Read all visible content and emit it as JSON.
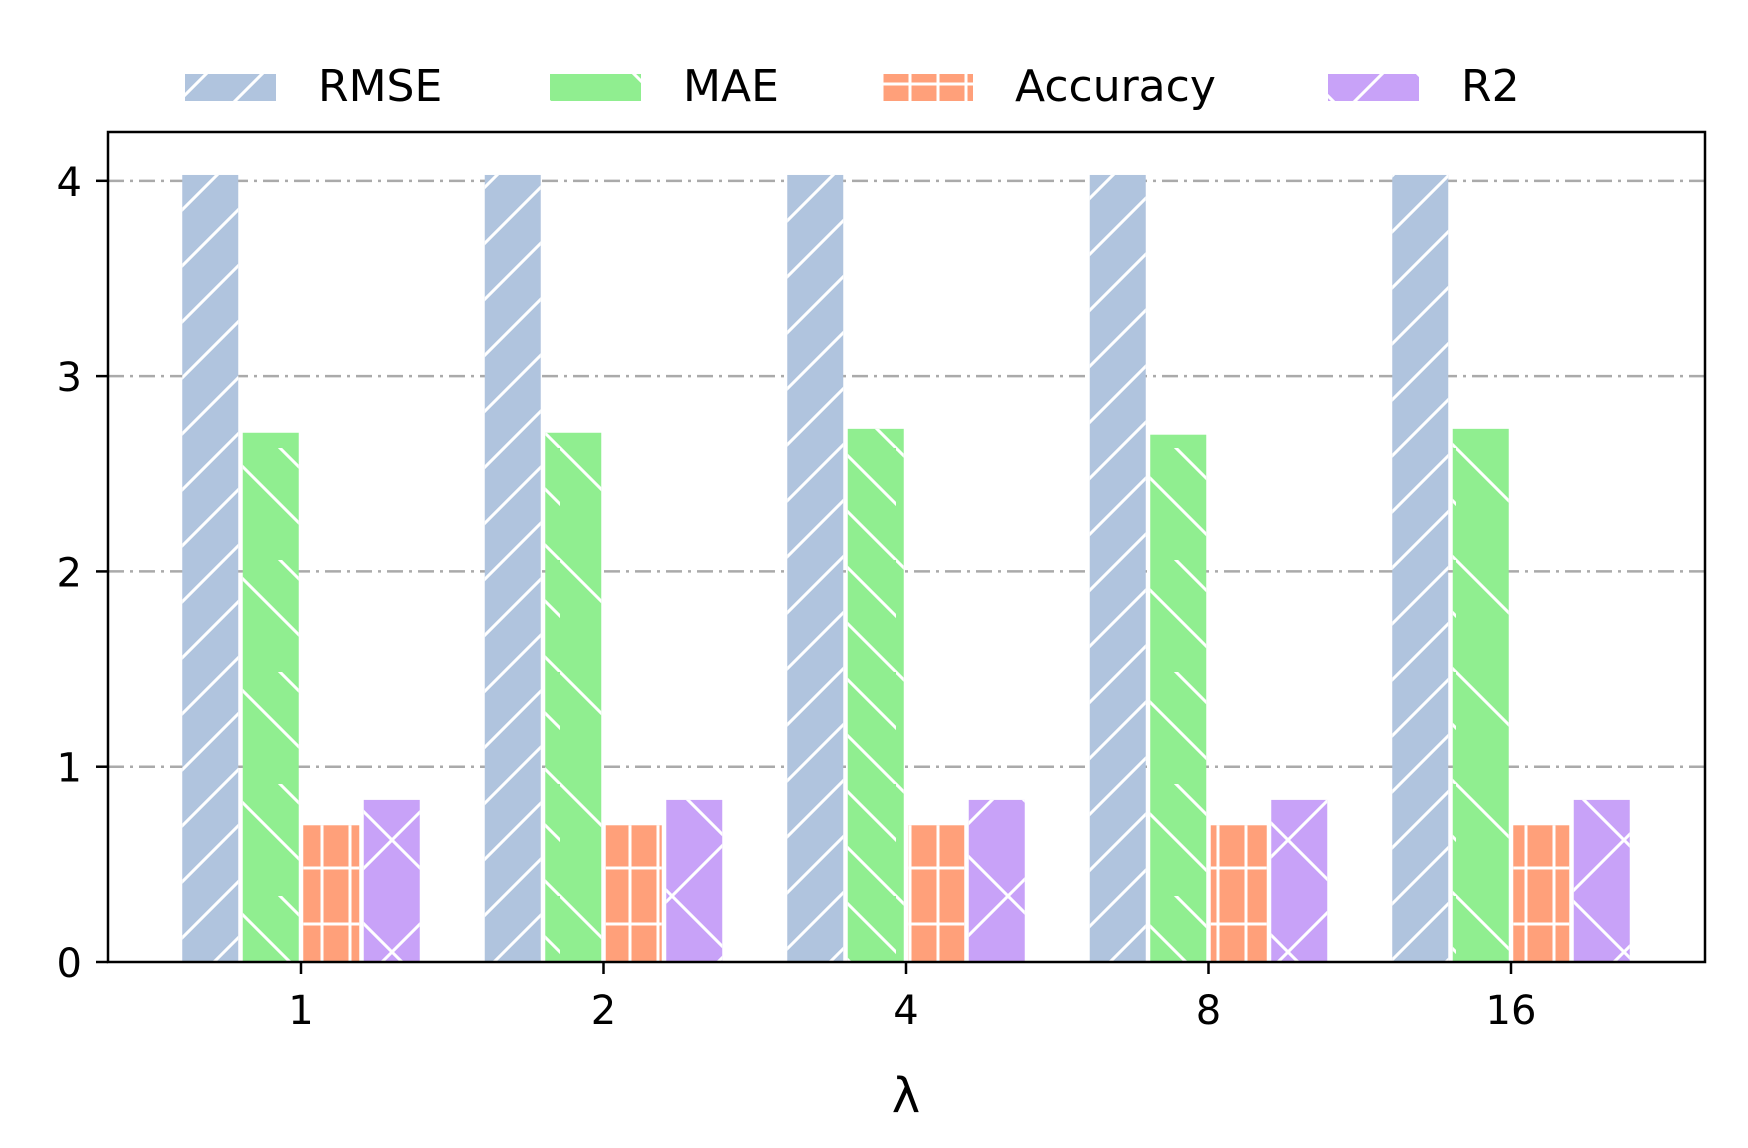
{
  "chart_data": {
    "type": "bar",
    "title": "",
    "xlabel": "λ",
    "ylabel": "",
    "categories": [
      "1",
      "2",
      "4",
      "8",
      "16"
    ],
    "ylim": [
      0,
      4.25
    ],
    "yticks": [
      "0",
      "1",
      "2",
      "3",
      "4"
    ],
    "grid": true,
    "legend_position": "top",
    "series": [
      {
        "name": "RMSE",
        "color": "#b0c4de",
        "hatch": "forward-diagonal",
        "values": [
          4.03,
          4.03,
          4.03,
          4.03,
          4.03
        ]
      },
      {
        "name": "MAE",
        "color": "#90ee90",
        "hatch": "back-diagonal",
        "values": [
          2.71,
          2.71,
          2.73,
          2.7,
          2.73
        ]
      },
      {
        "name": "Accuracy",
        "color": "#ffa07a",
        "hatch": "grid",
        "values": [
          0.7,
          0.7,
          0.7,
          0.7,
          0.7
        ]
      },
      {
        "name": "R2",
        "color": "#c8a2f8",
        "hatch": "cross",
        "values": [
          0.83,
          0.83,
          0.83,
          0.83,
          0.83
        ]
      }
    ]
  }
}
